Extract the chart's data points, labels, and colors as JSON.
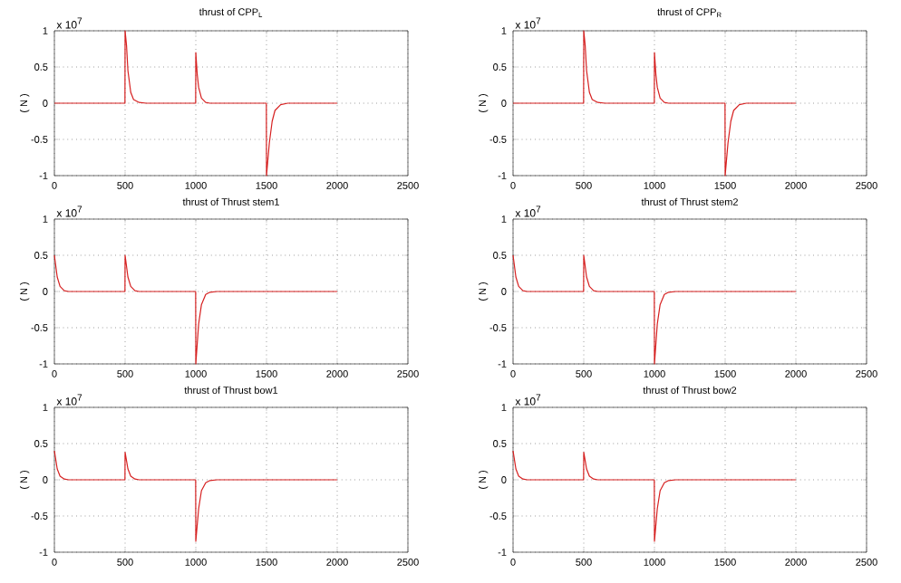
{
  "chart_data": [
    {
      "type": "line",
      "title": "thrust of CPP$_{L}$",
      "ylabel": "( N )",
      "annotations": [
        "x 10$^{7}$"
      ],
      "xlim": [
        0,
        2500
      ],
      "ylim": [
        -1,
        1
      ],
      "xticks": [
        0,
        500,
        1000,
        1500,
        2000,
        2500
      ],
      "yticks": [
        -1,
        -0.5,
        0,
        0.5,
        1
      ],
      "grid": true,
      "series": [
        {
          "color": "#d62020",
          "x": [
            0,
            499,
            500,
            510,
            520,
            540,
            560,
            600,
            650,
            999,
            1000,
            1010,
            1020,
            1040,
            1070,
            1100,
            1499,
            1500,
            1520,
            1540,
            1560,
            1600,
            1650,
            2000
          ],
          "values": [
            0,
            0,
            1,
            0.8,
            0.45,
            0.15,
            0.05,
            0.01,
            0,
            0,
            0.7,
            0.4,
            0.22,
            0.07,
            0.01,
            0,
            0,
            -1,
            -0.55,
            -0.25,
            -0.1,
            -0.02,
            0,
            0
          ]
        }
      ]
    },
    {
      "type": "line",
      "title": "thrust of CPP$_{R}$",
      "ylabel": "( N )",
      "annotations": [
        "x 10$^{7}$"
      ],
      "xlim": [
        0,
        2500
      ],
      "ylim": [
        -1,
        1
      ],
      "xticks": [
        0,
        500,
        1000,
        1500,
        2000,
        2500
      ],
      "yticks": [
        -1,
        -0.5,
        0,
        0.5,
        1
      ],
      "grid": true,
      "series": [
        {
          "color": "#d62020",
          "x": [
            0,
            499,
            500,
            510,
            520,
            540,
            560,
            600,
            650,
            999,
            1000,
            1010,
            1020,
            1040,
            1070,
            1100,
            1499,
            1500,
            1520,
            1540,
            1560,
            1600,
            1650,
            2000
          ],
          "values": [
            0,
            0,
            1,
            0.8,
            0.45,
            0.15,
            0.05,
            0.01,
            0,
            0,
            0.7,
            0.4,
            0.22,
            0.07,
            0.01,
            0,
            0,
            -1,
            -0.55,
            -0.25,
            -0.1,
            -0.02,
            0,
            0
          ]
        }
      ]
    },
    {
      "type": "line",
      "title": "thrust of Thrust stem1",
      "ylabel": "( N )",
      "annotations": [
        "x 10$^{7}$"
      ],
      "xlim": [
        0,
        2500
      ],
      "ylim": [
        -1,
        1
      ],
      "xticks": [
        0,
        500,
        1000,
        1500,
        2000,
        2500
      ],
      "yticks": [
        -1,
        -0.5,
        0,
        0.5,
        1
      ],
      "grid": true,
      "series": [
        {
          "color": "#d62020",
          "x": [
            0,
            20,
            40,
            70,
            100,
            499,
            500,
            520,
            540,
            570,
            600,
            999,
            1000,
            1020,
            1040,
            1070,
            1100,
            1150,
            2000
          ],
          "values": [
            0.5,
            0.2,
            0.07,
            0.01,
            0,
            0,
            0.5,
            0.2,
            0.07,
            0.01,
            0,
            0,
            -1,
            -0.45,
            -0.18,
            -0.04,
            -0.01,
            0,
            0
          ]
        }
      ]
    },
    {
      "type": "line",
      "title": "thrust of Thrust stem2",
      "ylabel": "( N )",
      "annotations": [
        "x 10$^{7}$"
      ],
      "xlim": [
        0,
        2500
      ],
      "ylim": [
        -1,
        1
      ],
      "xticks": [
        0,
        500,
        1000,
        1500,
        2000,
        2500
      ],
      "yticks": [
        -1,
        -0.5,
        0,
        0.5,
        1
      ],
      "grid": true,
      "series": [
        {
          "color": "#d62020",
          "x": [
            0,
            20,
            40,
            70,
            100,
            499,
            500,
            520,
            540,
            570,
            600,
            999,
            1000,
            1020,
            1040,
            1070,
            1100,
            1150,
            2000
          ],
          "values": [
            0.5,
            0.2,
            0.07,
            0.01,
            0,
            0,
            0.5,
            0.2,
            0.07,
            0.01,
            0,
            0,
            -1,
            -0.45,
            -0.18,
            -0.04,
            -0.01,
            0,
            0
          ]
        }
      ]
    },
    {
      "type": "line",
      "title": "thrust of Thrust bow1",
      "ylabel": "( N )",
      "annotations": [
        "x 10$^{7}$"
      ],
      "xlim": [
        0,
        2500
      ],
      "ylim": [
        -1,
        1
      ],
      "xticks": [
        0,
        500,
        1000,
        1500,
        2000,
        2500
      ],
      "yticks": [
        -1,
        -0.5,
        0,
        0.5,
        1
      ],
      "grid": true,
      "series": [
        {
          "color": "#d62020",
          "x": [
            0,
            20,
            40,
            70,
            100,
            499,
            500,
            520,
            540,
            570,
            600,
            999,
            1000,
            1020,
            1040,
            1070,
            1100,
            1150,
            2000
          ],
          "values": [
            0.4,
            0.15,
            0.05,
            0.01,
            0,
            0,
            0.38,
            0.15,
            0.05,
            0.01,
            0,
            0,
            -0.85,
            -0.4,
            -0.15,
            -0.04,
            -0.01,
            0,
            0
          ]
        }
      ]
    },
    {
      "type": "line",
      "title": "thrust of Thrust bow2",
      "ylabel": "( N )",
      "annotations": [
        "x 10$^{7}$"
      ],
      "xlim": [
        0,
        2500
      ],
      "ylim": [
        -1,
        1
      ],
      "xticks": [
        0,
        500,
        1000,
        1500,
        2000,
        2500
      ],
      "yticks": [
        -1,
        -0.5,
        0,
        0.5,
        1
      ],
      "grid": true,
      "series": [
        {
          "color": "#d62020",
          "x": [
            0,
            20,
            40,
            70,
            100,
            499,
            500,
            520,
            540,
            570,
            600,
            999,
            1000,
            1020,
            1040,
            1070,
            1100,
            1150,
            2000
          ],
          "values": [
            0.4,
            0.15,
            0.05,
            0.01,
            0,
            0,
            0.38,
            0.15,
            0.05,
            0.01,
            0,
            0,
            -0.85,
            -0.4,
            -0.15,
            -0.04,
            -0.01,
            0,
            0
          ]
        }
      ]
    }
  ]
}
